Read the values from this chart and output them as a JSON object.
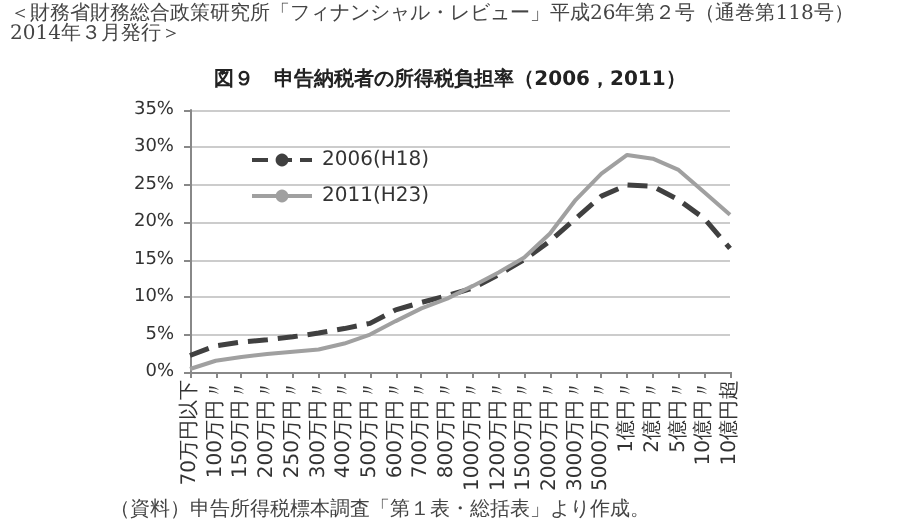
{
  "chart_data": {
    "type": "line",
    "title": "図９　申告納税者の所得税負担率（2006，2011）",
    "annotations": [
      "＜財務省財務総合政策研究所「フィナンシャル・レビュー」平成26年第２号（通巻第118号）2014年３月発行＞",
      "（資料）申告所得税標本調査「第１表・総括表」より作成。"
    ],
    "categories": [
      "70万円以下",
      "100万円〃",
      "150万円〃",
      "200万円〃",
      "250万円〃",
      "300万円〃",
      "400万円〃",
      "500万円〃",
      "600万円〃",
      "700万円〃",
      "800万円〃",
      "1000万円〃",
      "1200万円〃",
      "1500万円〃",
      "2000万円〃",
      "3000万円〃",
      "5000万円〃",
      "1億円〃",
      "2億円〃",
      "5億円〃",
      "10億円〃",
      "10億円超"
    ],
    "series": [
      {
        "name": "2006(H18)",
        "color": "#404040",
        "line_style": "dashed",
        "values": [
          2.2,
          3.5,
          4.0,
          4.3,
          4.7,
          5.2,
          5.8,
          6.5,
          8.3,
          9.3,
          10.2,
          11.2,
          13.0,
          15.0,
          17.5,
          20.5,
          23.5,
          25.0,
          24.8,
          23.0,
          20.5,
          16.5
        ]
      },
      {
        "name": "2011(H23)",
        "color": "#a0a0a0",
        "line_style": "solid",
        "values": [
          0.4,
          1.5,
          2.0,
          2.4,
          2.7,
          3.0,
          3.8,
          5.0,
          6.8,
          8.5,
          9.8,
          11.5,
          13.3,
          15.3,
          18.5,
          23.0,
          26.5,
          29.0,
          28.5,
          27.0,
          24.0,
          21.0
        ]
      }
    ],
    "ylim": [
      0,
      35
    ],
    "yticks": [
      {
        "value": 0,
        "label": "0%"
      },
      {
        "value": 5,
        "label": "5%"
      },
      {
        "value": 10,
        "label": "10%"
      },
      {
        "value": 15,
        "label": "15%"
      },
      {
        "value": 20,
        "label": "20%"
      },
      {
        "value": 25,
        "label": "25%"
      },
      {
        "value": 30,
        "label": "30%"
      },
      {
        "value": 35,
        "label": "35%"
      }
    ],
    "grid": "y",
    "legend": "top left",
    "marker": "none"
  }
}
